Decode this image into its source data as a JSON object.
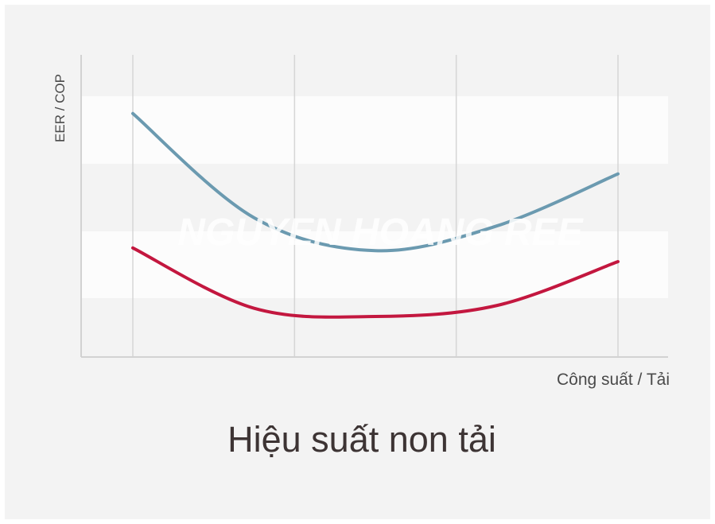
{
  "chart_data": {
    "type": "line",
    "title": "Hiệu suất non tải",
    "xlabel": "Công suất / Tải",
    "ylabel": "EER / COP",
    "watermark": "NGUYEN HOANG REE",
    "x": [
      0,
      0.25,
      0.5,
      0.75,
      1
    ],
    "xlim": [
      -0.08,
      1.08
    ],
    "ylim": [
      0,
      1
    ],
    "grid": "vertical",
    "series": [
      {
        "color": "#6b9ab0",
        "x": [
          0,
          0.25,
          0.5,
          0.75,
          1
        ],
        "values": [
          0.85,
          0.47,
          0.35,
          0.44,
          0.63
        ]
      },
      {
        "color": "#c3173f",
        "x": [
          0,
          0.25,
          0.5,
          0.75,
          1
        ],
        "values": [
          0.36,
          0.14,
          0.11,
          0.15,
          0.31
        ]
      }
    ]
  }
}
